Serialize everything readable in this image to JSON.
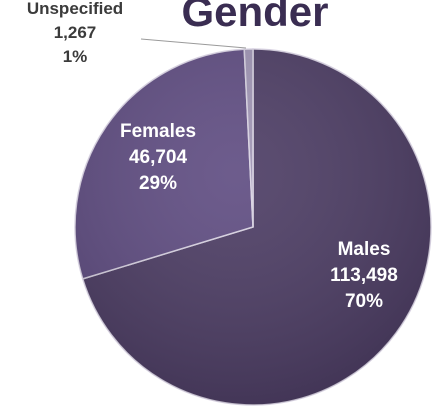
{
  "chart_data": {
    "type": "pie",
    "title": "Gender",
    "slices": [
      {
        "name": "Males",
        "value": 113498,
        "value_text": "113,498",
        "percent_text": "70%",
        "color": "#4a3a62"
      },
      {
        "name": "Females",
        "value": 46704,
        "value_text": "46,704",
        "percent_text": "29%",
        "color": "#5d4a80"
      },
      {
        "name": "Unspecified",
        "value": 1267,
        "value_text": "1,267",
        "percent_text": "1%",
        "color": "#9e93b3"
      }
    ],
    "label_color_inside": "#ffffff",
    "label_color_outside": "#3b3b3b"
  }
}
